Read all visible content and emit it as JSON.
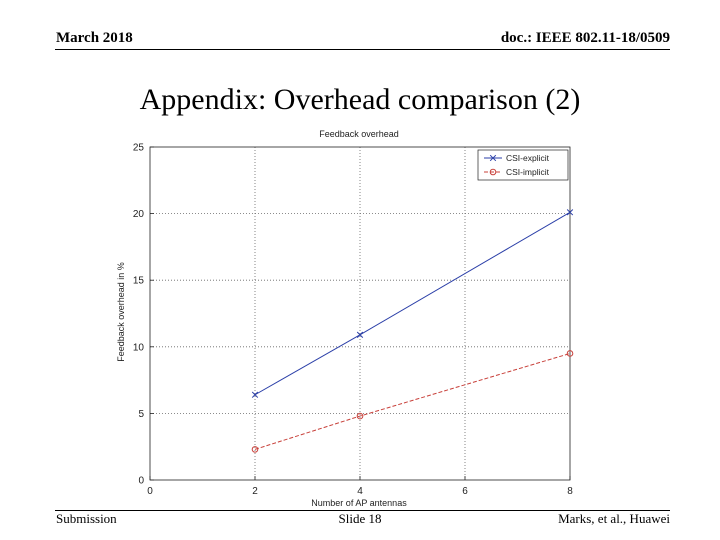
{
  "header": {
    "date": "March 2018",
    "doc": "doc.: IEEE 802.11-18/0509"
  },
  "slide": {
    "title": "Appendix: Overhead comparison (2)"
  },
  "footer": {
    "left": "Submission",
    "center": "Slide 18",
    "right": "Marks, et al., Huawei"
  },
  "chart_data": {
    "type": "line",
    "title": "Feedback overhead",
    "xlabel": "Number of AP antennas",
    "ylabel": "Feedback overhead in %",
    "xlim": [
      0,
      8
    ],
    "ylim": [
      0,
      25
    ],
    "xticks": [
      0,
      2,
      4,
      6,
      8
    ],
    "yticks": [
      0,
      5,
      10,
      15,
      20,
      25
    ],
    "grid": true,
    "legend_position": "top-right",
    "x": [
      2,
      4,
      8
    ],
    "series": [
      {
        "name": "CSI-explicit",
        "values": [
          6.4,
          10.9,
          20.1
        ],
        "color": "#2b3fa8",
        "marker": "x",
        "dash": "solid"
      },
      {
        "name": "CSI-implicit",
        "values": [
          2.3,
          4.8,
          9.5
        ],
        "color": "#c8403a",
        "marker": "o",
        "dash": "dashed"
      }
    ]
  }
}
